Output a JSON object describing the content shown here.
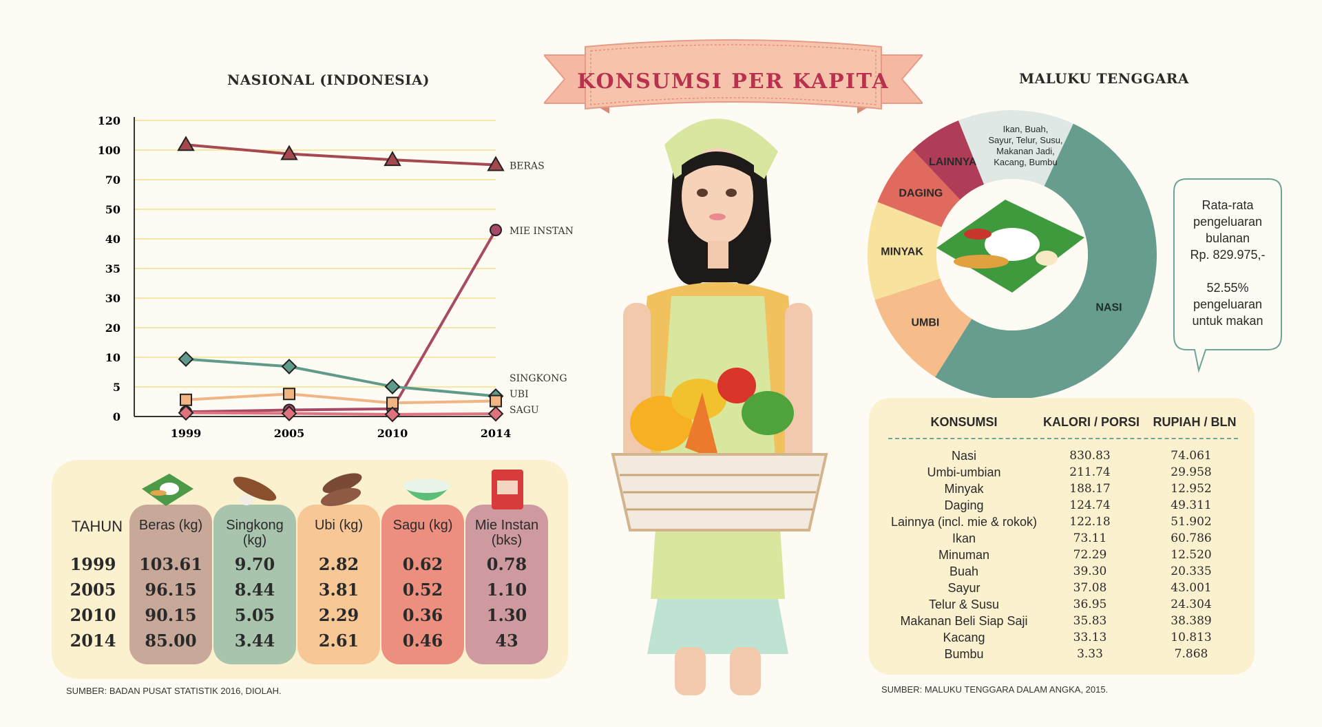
{
  "header": {
    "title": "KONSUMSI PER KAPITA"
  },
  "nasional": {
    "title": "NASIONAL  (INDONESIA)",
    "source": "SUMBER: BADAN PUSAT STATISTIK 2016, DIOLAH.",
    "table": {
      "row_header": "TAHUN",
      "years": [
        "1999",
        "2005",
        "2010",
        "2014"
      ],
      "columns": [
        {
          "label": "Beras (kg)",
          "color": "#c8a898",
          "values": [
            "103.61",
            "96.15",
            "90.15",
            "85.00"
          ]
        },
        {
          "label": "Singkong (kg)",
          "color": "#a9c4ad",
          "values": [
            "9.70",
            "8.44",
            "5.05",
            "3.44"
          ]
        },
        {
          "label": "Ubi (kg)",
          "color": "#f8c796",
          "values": [
            "2.82",
            "3.81",
            "2.29",
            "2.61"
          ]
        },
        {
          "label": "Sagu (kg)",
          "color": "#ec8f7e",
          "values": [
            "0.62",
            "0.52",
            "0.36",
            "0.46"
          ]
        },
        {
          "label": "Mie Instan (bks)",
          "color": "#cf9a9f",
          "values": [
            "0.78",
            "1.10",
            "1.30",
            "43"
          ]
        }
      ]
    }
  },
  "chart_data": [
    {
      "type": "line",
      "title": "NASIONAL  (INDONESIA)",
      "x": [
        "1999",
        "2005",
        "2010",
        "2014"
      ],
      "y_ticks": [
        "0",
        "5",
        "10",
        "20",
        "30",
        "35",
        "40",
        "50",
        "70",
        "100",
        "120"
      ],
      "y_scale": "non-linear, labels at evenly spaced gridlines",
      "grid": true,
      "series": [
        {
          "name": "BERAS",
          "values": [
            103.61,
            96.15,
            90.15,
            85.0
          ],
          "color": "#a5494f",
          "marker": "triangle"
        },
        {
          "name": "MIE INSTAN",
          "values": [
            0.78,
            1.1,
            1.3,
            43
          ],
          "color": "#a84a66",
          "marker": "circle"
        },
        {
          "name": "SINGKONG",
          "values": [
            9.7,
            8.44,
            5.05,
            3.44
          ],
          "color": "#5f9a8a",
          "marker": "diamond"
        },
        {
          "name": "UBI",
          "values": [
            2.82,
            3.81,
            2.29,
            2.61
          ],
          "color": "#f1b483",
          "marker": "square"
        },
        {
          "name": "SAGU",
          "values": [
            0.62,
            0.52,
            0.36,
            0.46
          ],
          "color": "#e0727e",
          "marker": "diamond-x"
        }
      ]
    },
    {
      "type": "pie",
      "title": "MALUKU TENGGARA",
      "donut": true,
      "slices": [
        {
          "label": "NASI",
          "value": 52.0,
          "color": "#669d8f",
          "text_color": "#1f2d2a"
        },
        {
          "label": "UMBI",
          "value": 11.0,
          "color": "#f6bc8a",
          "text_color": "#2a2a2a"
        },
        {
          "label": "MINYAK",
          "value": 11.0,
          "color": "#f8e39e",
          "text_color": "#2a2a2a"
        },
        {
          "label": "DAGING",
          "value": 7.0,
          "color": "#e06a5e",
          "text_color": "#2a2a2a"
        },
        {
          "label": "LAINNYA",
          "value": 6.0,
          "color": "#b03d58",
          "text_color": "#2a2a2a"
        },
        {
          "label": "Ikan, Buah, Sayur, Telur, Susu, Makanan Jadi, Kacang, Bumbu",
          "value": 13.0,
          "color": "#dfe8e4",
          "text_color": "#2a2a2a"
        }
      ]
    }
  ],
  "maluku": {
    "title": "MALUKU TENGGARA",
    "callout": [
      "Rata-rata",
      "pengeluaran",
      "bulanan",
      "Rp. 829.975,-",
      "",
      "52.55%",
      "pengeluaran",
      "untuk makan"
    ],
    "source": "SUMBER: MALUKU TENGGARA DALAM ANGKA, 2015.",
    "table": {
      "headers": [
        "KONSUMSI",
        "KALORI / PORSI",
        "RUPIAH / BLN"
      ],
      "rows": [
        [
          "Nasi",
          "830.83",
          "74.061"
        ],
        [
          "Umbi-umbian",
          "211.74",
          "29.958"
        ],
        [
          "Minyak",
          "188.17",
          "12.952"
        ],
        [
          "Daging",
          "124.74",
          "49.311"
        ],
        [
          "Lainnya (incl. mie & rokok)",
          "122.18",
          "51.902"
        ],
        [
          "Ikan",
          "73.11",
          "60.786"
        ],
        [
          "Minuman",
          "72.29",
          "12.520"
        ],
        [
          "Buah",
          "39.30",
          "20.335"
        ],
        [
          "Sayur",
          "37.08",
          "43.001"
        ],
        [
          "Telur & Susu",
          "36.95",
          "24.304"
        ],
        [
          "Makanan Beli Siap Saji",
          "35.83",
          "38.389"
        ],
        [
          "Kacang",
          "33.13",
          "10.813"
        ],
        [
          "Bumbu",
          "3.33",
          "7.868"
        ]
      ]
    }
  }
}
